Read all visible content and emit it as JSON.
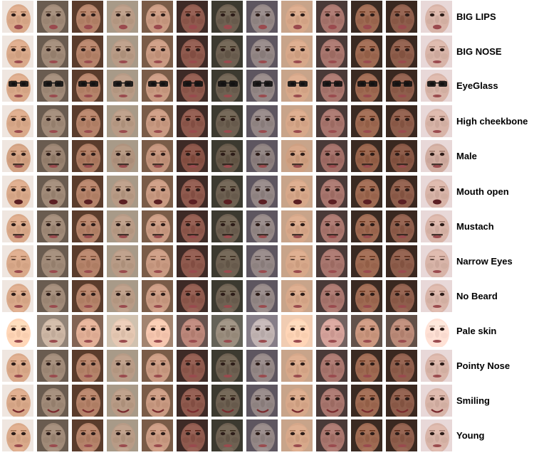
{
  "figure": {
    "rows": [
      {
        "label": "BIG LIPS",
        "attr": "big-lips"
      },
      {
        "label": "BIG NOSE",
        "attr": "big-nose"
      },
      {
        "label": "EyeGlass",
        "attr": "eyeglass"
      },
      {
        "label": "High cheekbone",
        "attr": "high-cheekbone"
      },
      {
        "label": "Male",
        "attr": "male"
      },
      {
        "label": "Mouth open",
        "attr": "mouth-open"
      },
      {
        "label": "Mustach",
        "attr": "mustach"
      },
      {
        "label": "Narrow Eyes",
        "attr": "narrow-eyes"
      },
      {
        "label": "No Beard",
        "attr": "no-beard"
      },
      {
        "label": "Pale skin",
        "attr": "pale-skin"
      },
      {
        "label": "Pointy Nose",
        "attr": "pointy-nose"
      },
      {
        "label": "Smiling",
        "attr": "smiling"
      },
      {
        "label": "Young",
        "attr": "young"
      }
    ],
    "faces_per_row": 13,
    "skin_tones": [
      "#d9a98a",
      "#a08a78",
      "#b5836a",
      "#b89b86",
      "#c99a82",
      "#8f5a4e",
      "#6e6152",
      "#948786",
      "#d7a88a",
      "#a8766e",
      "#9e6a52",
      "#8e5e4c",
      "#d8b4a8"
    ],
    "hair_tones": [
      "#efe6e0",
      "#6a5c50",
      "#5a3c2c",
      "#a89a88",
      "#7a5c48",
      "#3e2a26",
      "#3c3a30",
      "#5e5660",
      "#c8a48a",
      "#4a3a38",
      "#3a2a22",
      "#3a2820",
      "#e8d8d8"
    ]
  }
}
